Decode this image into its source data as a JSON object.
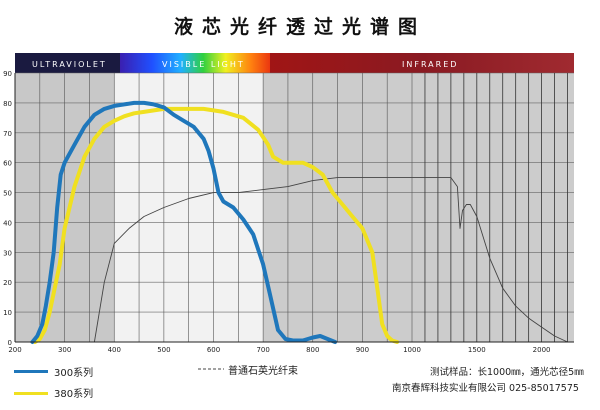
{
  "title": "液芯光纤透过光谱图",
  "bands": {
    "ultraviolet": "ULTRAVIOLET",
    "visible": "VISIBLE LIGHT",
    "infrared": "INFRARED"
  },
  "legend": {
    "series_300": "300系列",
    "series_380": "380系列",
    "quartz": "普通石英光纤束"
  },
  "footer": {
    "test_sample": "测试样品：长1000㎜，通光芯径5㎜",
    "company": "南京春辉科技实业有限公司  025-85017575"
  },
  "colors": {
    "series_300": "#1f77bb",
    "series_380": "#f0e020",
    "quartz": "#444444",
    "uv_band": "#c8c8c8",
    "visible_band": "#f2f2f2",
    "ir_band": "#cccccc",
    "header_ir": "#8a1a22"
  },
  "chart_data": {
    "type": "line",
    "title": "液芯光纤透过光谱图",
    "xlabel": "",
    "ylabel": "",
    "xlim": [
      200,
      2250
    ],
    "ylim": [
      0,
      90
    ],
    "x_ticks_linear": [
      200,
      300,
      400,
      500,
      600,
      700,
      800,
      900
    ],
    "x_ticks_ir": [
      1000,
      1500,
      2000
    ],
    "y_ticks": [
      0,
      10,
      20,
      30,
      40,
      50,
      60,
      70,
      80,
      90
    ],
    "grid": true,
    "legend_position": "bottom",
    "series": [
      {
        "name": "300系列",
        "x": [
          235,
          245,
          255,
          262,
          270,
          278,
          285,
          292,
          300,
          320,
          340,
          360,
          380,
          400,
          420,
          440,
          460,
          480,
          500,
          520,
          540,
          560,
          580,
          590,
          600,
          610,
          620,
          640,
          660,
          680,
          700,
          715,
          730,
          745,
          760,
          780,
          800,
          815,
          830,
          845
        ],
        "y": [
          0,
          2,
          6,
          12,
          20,
          30,
          45,
          56,
          60,
          66,
          72,
          76,
          78,
          79,
          79.5,
          80,
          80,
          79.5,
          78.5,
          76,
          74,
          72,
          68,
          64,
          58,
          50,
          47,
          45,
          41,
          36,
          26,
          15,
          4,
          1,
          0.5,
          0.5,
          1.5,
          2,
          1,
          0
        ]
      },
      {
        "name": "380系列",
        "x": [
          240,
          250,
          260,
          270,
          280,
          290,
          300,
          320,
          340,
          360,
          380,
          400,
          420,
          440,
          460,
          480,
          500,
          540,
          580,
          620,
          660,
          690,
          710,
          720,
          740,
          780,
          800,
          820,
          840,
          860,
          880,
          900,
          920,
          930,
          940,
          950,
          960,
          970
        ],
        "y": [
          0,
          1,
          4,
          10,
          18,
          26,
          38,
          52,
          62,
          68,
          72,
          74,
          75.5,
          76.5,
          77,
          77.5,
          78,
          78,
          78,
          77,
          75,
          71,
          66,
          62,
          60,
          60,
          58.5,
          56,
          50,
          46,
          42,
          38,
          30,
          18,
          6,
          2,
          0.5,
          0
        ]
      },
      {
        "name": "普通石英光纤束",
        "x": [
          360,
          380,
          400,
          430,
          460,
          500,
          550,
          600,
          650,
          700,
          750,
          800,
          850,
          900,
          950,
          1000,
          1100,
          1200,
          1300,
          1350,
          1370,
          1390,
          1420,
          1450,
          1500,
          1550,
          1600,
          1700,
          1800,
          1900,
          2000,
          2100,
          2200
        ],
        "y": [
          0,
          20,
          33,
          38,
          42,
          45,
          48,
          50,
          50,
          51,
          52,
          54,
          55,
          55,
          55,
          55,
          55,
          55,
          55,
          52,
          38,
          44,
          46,
          46,
          42,
          35,
          28,
          18,
          12,
          8,
          5,
          2,
          0
        ]
      }
    ]
  }
}
